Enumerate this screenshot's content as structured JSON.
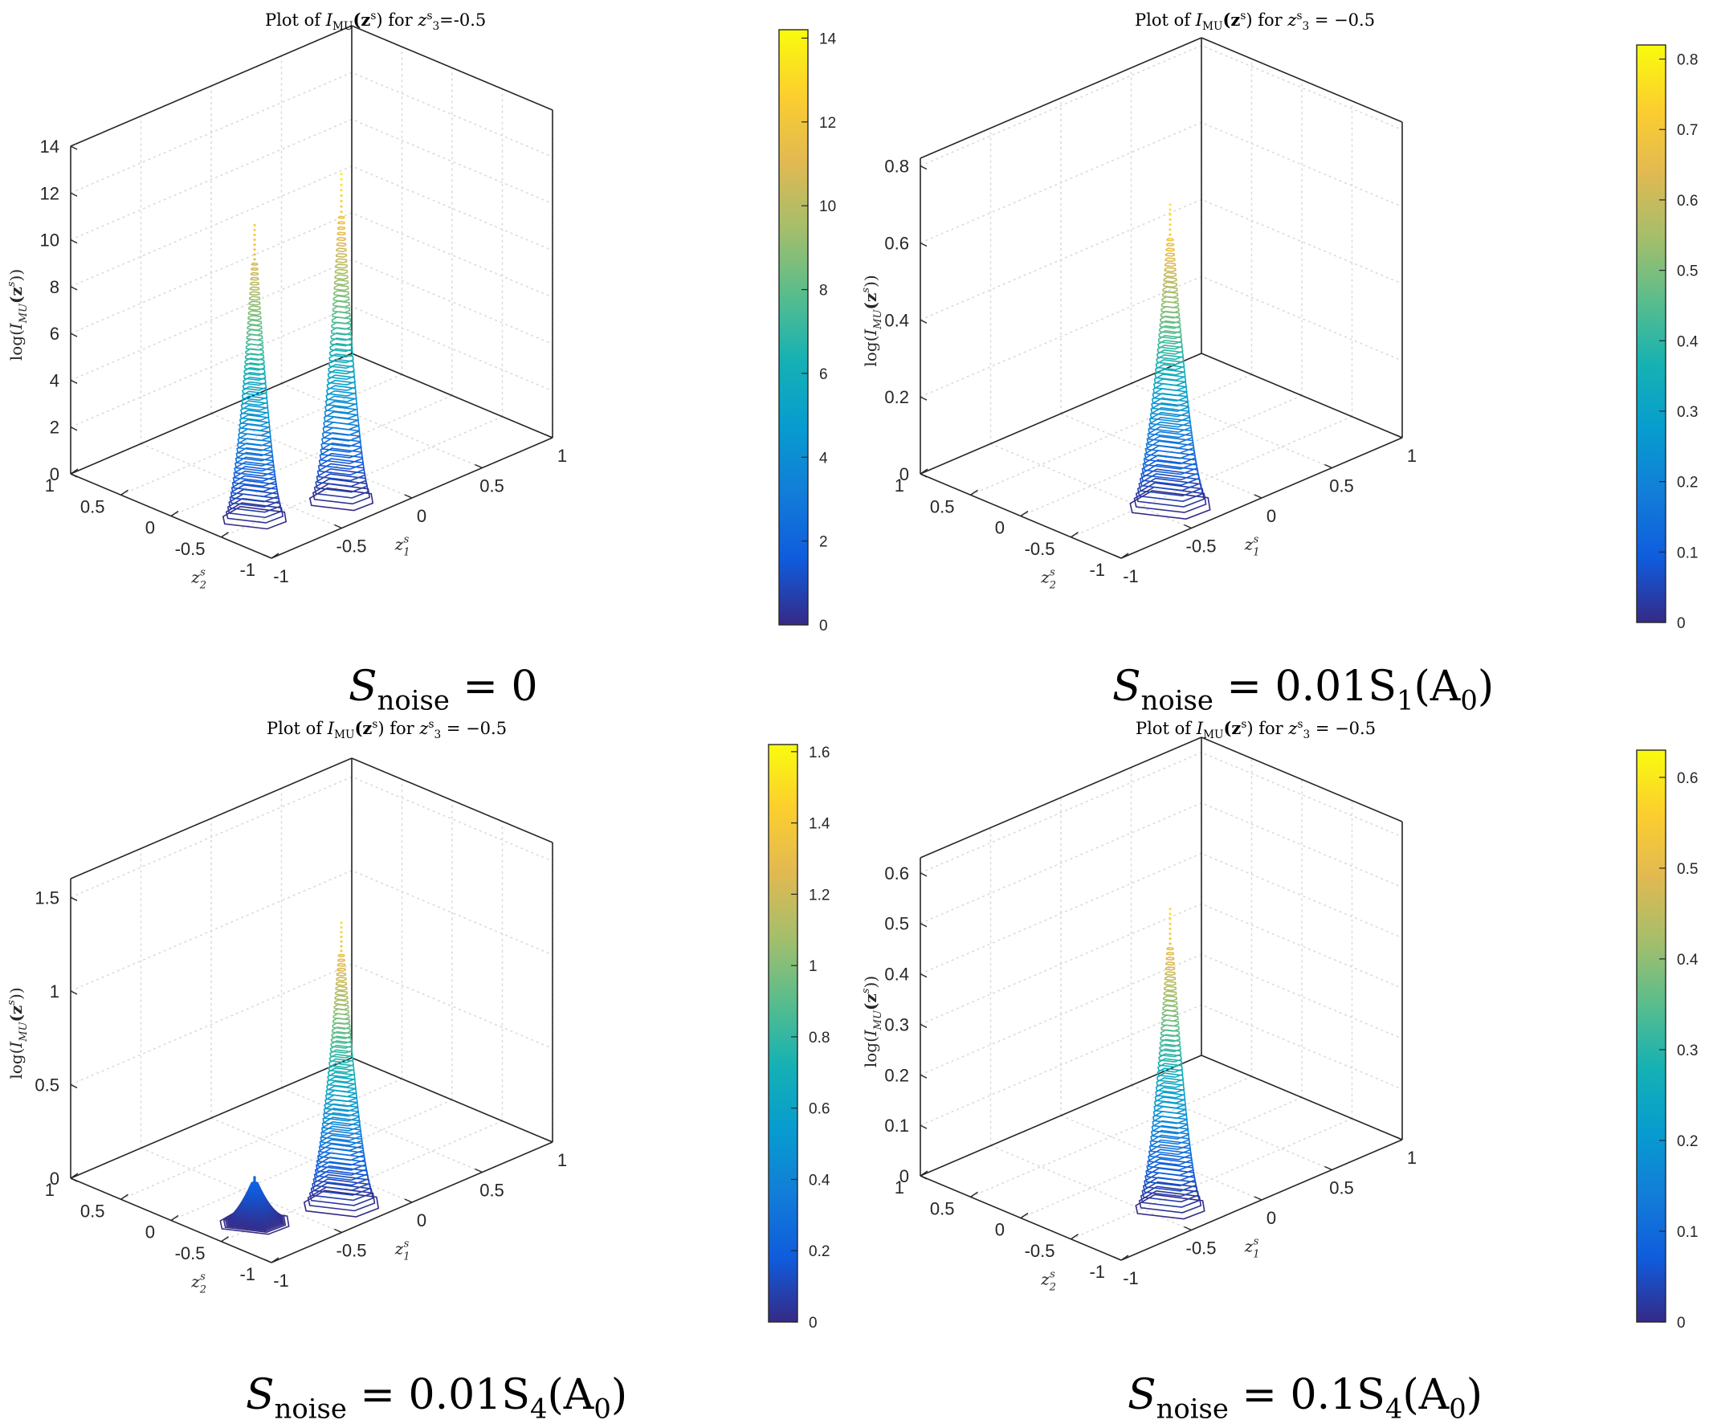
{
  "chart_data": [
    {
      "type": "contour3d",
      "title_prefix": "Plot of ",
      "title_math": "I",
      "title_sub": "MU",
      "title_mid": "(z",
      "title_sup": "s",
      "title_tail": ") for ",
      "title_var": "z",
      "title_var_sub": "3",
      "title_var_sup": "s",
      "title_value": "=-0.5",
      "caption_main": "S",
      "caption_sub": "noise",
      "caption_rhs": " = 0",
      "zlabel_prefix": "log(",
      "zlabel_var": "I",
      "zlabel_sub": "MU",
      "zlabel_tail": "(z",
      "zlabel_sup": "s",
      "zlabel_end": "))",
      "xlabel_var": "z",
      "xlabel_sub": "1",
      "xlabel_sup": "s",
      "ylabel_var": "z",
      "ylabel_sub": "2",
      "ylabel_sup": "s",
      "xticks": [
        "-1",
        "-0.5",
        "0",
        "0.5",
        "1"
      ],
      "yticks": [
        "1",
        "0.5",
        "0",
        "-0.5",
        "-1"
      ],
      "zticks": [
        "0",
        "2",
        "4",
        "6",
        "8",
        "10",
        "12",
        "14"
      ],
      "zlim": [
        0,
        14
      ],
      "colorbar_ticks": [
        "0",
        "2",
        "4",
        "6",
        "8",
        "10",
        "12",
        "14"
      ],
      "clim": [
        0,
        14.2
      ],
      "colormap": "parula",
      "grid": true,
      "peaks": [
        {
          "z1": -0.72,
          "z2": -0.44,
          "height": 12.5,
          "base_width": 0.22
        },
        {
          "z1": -0.26,
          "z2": -0.66,
          "height": 13.9,
          "base_width": 0.22
        }
      ]
    },
    {
      "type": "contour3d",
      "title_prefix": "Plot of ",
      "title_math": "I",
      "title_sub": "MU",
      "title_mid": "(z",
      "title_sup": "s",
      "title_tail": ") for ",
      "title_var": "z",
      "title_var_sub": "3",
      "title_var_sup": "s",
      "title_value": " = −0.5",
      "caption_main": "S",
      "caption_sub": "noise",
      "caption_rhs": " = 0.01S",
      "caption_rhs_sub": "1",
      "caption_rhs_tail": "(A",
      "caption_rhs_tail_sub": "0",
      "caption_rhs_end": ")",
      "zlabel_prefix": "log(",
      "zlabel_var": "I",
      "zlabel_sub": "MU",
      "zlabel_tail": "(z",
      "zlabel_sup": "s",
      "zlabel_end": "))",
      "xlabel_var": "z",
      "xlabel_sub": "1",
      "xlabel_sup": "s",
      "ylabel_var": "z",
      "ylabel_sub": "2",
      "ylabel_sup": "s",
      "xticks": [
        "-1",
        "-0.5",
        "0",
        "0.5",
        "1"
      ],
      "yticks": [
        "1",
        "0.5",
        "0",
        "-0.5",
        "-1"
      ],
      "zticks": [
        "0",
        "0.2",
        "0.4",
        "0.6",
        "0.8"
      ],
      "zlim": [
        0,
        0.82
      ],
      "colorbar_ticks": [
        "0",
        "0.1",
        "0.2",
        "0.3",
        "0.4",
        "0.5",
        "0.6",
        "0.7",
        "0.8"
      ],
      "clim": [
        0,
        0.82
      ],
      "colormap": "parula",
      "grid": true,
      "peaks": [
        {
          "z1": -0.38,
          "z2": -0.62,
          "height": 0.78,
          "base_width": 0.28
        }
      ]
    },
    {
      "type": "contour3d",
      "title_prefix": "Plot of ",
      "title_math": "I",
      "title_sub": "MU",
      "title_mid": "(z",
      "title_sup": "s",
      "title_tail": ") for ",
      "title_var": "z",
      "title_var_sub": "3",
      "title_var_sup": "s",
      "title_value": " = −0.5",
      "caption_main": "S",
      "caption_sub": "noise",
      "caption_rhs": " = 0.01S",
      "caption_rhs_sub": "4",
      "caption_rhs_tail": "(A",
      "caption_rhs_tail_sub": "0",
      "caption_rhs_end": ")",
      "zlabel_prefix": "log(",
      "zlabel_var": "I",
      "zlabel_sub": "MU",
      "zlabel_tail": "(z",
      "zlabel_sup": "s",
      "zlabel_end": "))",
      "xlabel_var": "z",
      "xlabel_sub": "1",
      "xlabel_sup": "s",
      "ylabel_var": "z",
      "ylabel_sub": "2",
      "ylabel_sup": "s",
      "xticks": [
        "-1",
        "-0.5",
        "0",
        "0.5",
        "1"
      ],
      "yticks": [
        "1",
        "0.5",
        "0",
        "-0.5",
        "-1"
      ],
      "zticks": [
        "0",
        "0.5",
        "1",
        "1.5"
      ],
      "zlim": [
        0,
        1.6
      ],
      "colorbar_ticks": [
        "0",
        "0.2",
        "0.4",
        "0.6",
        "0.8",
        "1",
        "1.2",
        "1.4",
        "1.6"
      ],
      "clim": [
        0,
        1.62
      ],
      "colormap": "parula",
      "grid": true,
      "peaks": [
        {
          "z1": -0.72,
          "z2": -0.44,
          "height": 0.24,
          "base_width": 0.24
        },
        {
          "z1": -0.26,
          "z2": -0.66,
          "height": 1.5,
          "base_width": 0.26
        }
      ]
    },
    {
      "type": "contour3d",
      "title_prefix": "Plot of ",
      "title_math": "I",
      "title_sub": "MU",
      "title_mid": "(z",
      "title_sup": "s",
      "title_tail": ") for ",
      "title_var": "z",
      "title_var_sub": "3",
      "title_var_sup": "s",
      "title_value": " = −0.5",
      "caption_main": "S",
      "caption_sub": "noise",
      "caption_rhs": " = 0.1S",
      "caption_rhs_sub": "4",
      "caption_rhs_tail": "(A",
      "caption_rhs_tail_sub": "0",
      "caption_rhs_end": ")",
      "zlabel_prefix": "log(",
      "zlabel_var": "I",
      "zlabel_sub": "MU",
      "zlabel_tail": "(z",
      "zlabel_sup": "s",
      "zlabel_end": "))",
      "xlabel_var": "z",
      "xlabel_sub": "1",
      "xlabel_sup": "s",
      "ylabel_var": "z",
      "ylabel_sub": "2",
      "ylabel_sup": "s",
      "xticks": [
        "-1",
        "-0.5",
        "0",
        "0.5",
        "1"
      ],
      "yticks": [
        "1",
        "0.5",
        "0",
        "-0.5",
        "-1"
      ],
      "zticks": [
        "0",
        "0.1",
        "0.2",
        "0.3",
        "0.4",
        "0.5",
        "0.6"
      ],
      "zlim": [
        0,
        0.63
      ],
      "colorbar_ticks": [
        "0",
        "0.1",
        "0.2",
        "0.3",
        "0.4",
        "0.5",
        "0.6"
      ],
      "clim": [
        0,
        0.63
      ],
      "colormap": "parula",
      "grid": true,
      "peaks": [
        {
          "z1": -0.38,
          "z2": -0.62,
          "height": 0.59,
          "base_width": 0.24
        }
      ]
    }
  ]
}
